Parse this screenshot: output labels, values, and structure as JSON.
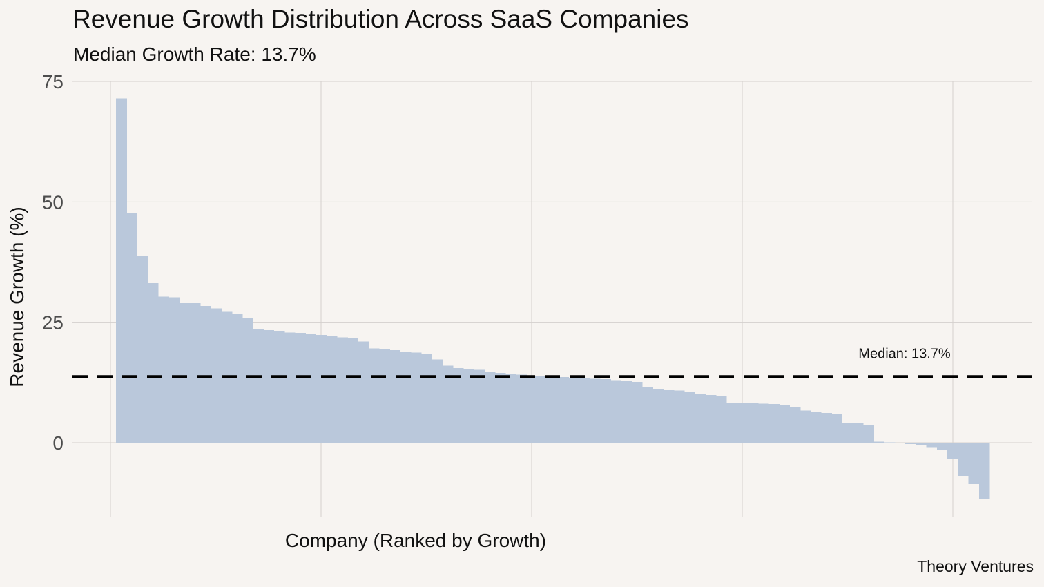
{
  "title": "Revenue Growth Distribution Across SaaS Companies",
  "subtitle": "Median Growth Rate: 13.7%",
  "caption": "Theory Ventures",
  "colors": {
    "background": "#f7f4f1",
    "bar": "#bac8db",
    "gridline": "#d4d0cd",
    "median_line": "#000000"
  },
  "chart_data": {
    "type": "bar",
    "xlabel": "Company (Ranked by Growth)",
    "ylabel": "Revenue Growth (%)",
    "ylim": [
      -15.5,
      75
    ],
    "yticks": [
      0,
      25,
      50,
      75
    ],
    "grid": true,
    "median": {
      "value": 13.7,
      "label": "Median: 13.7%",
      "style": "dashed"
    },
    "values": [
      71.5,
      47.7,
      38.7,
      33.1,
      30.3,
      30.2,
      29.0,
      29.0,
      28.4,
      27.9,
      27.2,
      26.8,
      25.9,
      23.5,
      23.4,
      23.2,
      22.9,
      22.8,
      22.6,
      22.4,
      22.1,
      21.9,
      21.8,
      21.0,
      19.6,
      19.4,
      19.2,
      18.9,
      18.7,
      18.5,
      17.3,
      16.0,
      15.5,
      15.3,
      15.1,
      14.8,
      14.5,
      14.3,
      14.1,
      13.9,
      13.8,
      13.7,
      13.6,
      13.5,
      13.4,
      13.3,
      13.2,
      13.0,
      12.8,
      12.6,
      11.5,
      11.2,
      10.9,
      10.8,
      10.6,
      10.2,
      9.9,
      9.6,
      8.3,
      8.3,
      8.2,
      8.1,
      8.0,
      7.8,
      7.3,
      6.7,
      6.4,
      6.2,
      5.9,
      4.1,
      4.0,
      3.6,
      0.2,
      0.1,
      0.0,
      -0.3,
      -0.6,
      -0.9,
      -1.6,
      -3.3,
      -6.9,
      -8.6,
      -11.6
    ]
  }
}
